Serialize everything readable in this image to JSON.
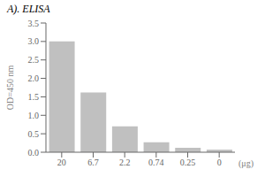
{
  "chart_data": {
    "type": "bar",
    "title": "A). ELISA",
    "categories": [
      "20",
      "6.7",
      "2.2",
      "0.74",
      "0.25",
      "0"
    ],
    "values": [
      3.0,
      1.62,
      0.7,
      0.27,
      0.12,
      0.07
    ],
    "color": "#c0c0c0",
    "xlabel": "(μg)",
    "ylabel": "OD=450 nm",
    "ylim": [
      0,
      3.5
    ],
    "yticks": [
      {
        "value": 0,
        "label": "0.0"
      },
      0.5,
      {
        "value": 1,
        "label": "1.0"
      },
      1.5,
      {
        "value": 2,
        "label": "2.0"
      },
      2.5,
      {
        "value": 3,
        "label": "3.0"
      },
      3.5
    ],
    "grid": false
  }
}
